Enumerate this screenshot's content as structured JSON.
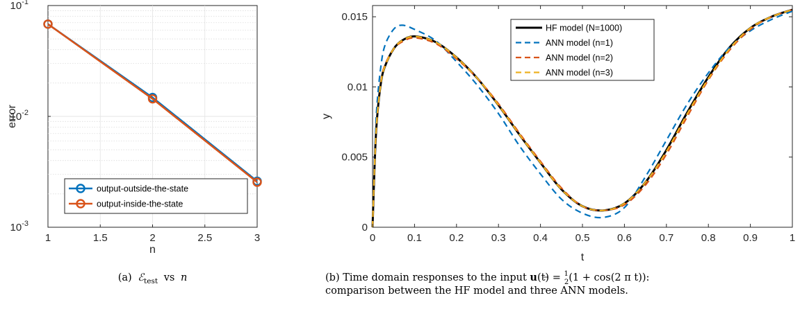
{
  "chart_data": [
    {
      "type": "line",
      "yscale": "log",
      "xlabel": "n",
      "ylabel": "error",
      "xlim": [
        1,
        3
      ],
      "ylim": [
        0.001,
        0.1
      ],
      "xticks": [
        1,
        1.5,
        2,
        2.5,
        3
      ],
      "xtick_labels": [
        "1",
        "1.5",
        "2",
        "2.5",
        "3"
      ],
      "ytick_labels": [
        {
          "base": "10",
          "exp": "-1"
        },
        {
          "base": "10",
          "exp": "-2"
        },
        {
          "base": "10",
          "exp": "-3"
        }
      ],
      "grid": true,
      "legend_position": "bottom-right",
      "x": [
        1,
        2,
        3
      ],
      "series": [
        {
          "name": "output-outside-the-state",
          "color": "#0072BD",
          "marker": "circle",
          "values": [
            0.068,
            0.0148,
            0.0026
          ]
        },
        {
          "name": "output-inside-the-state",
          "color": "#D95319",
          "marker": "circle",
          "values": [
            0.068,
            0.0144,
            0.00255
          ]
        }
      ],
      "caption": {
        "prefix": "(a)",
        "math": "ℰ",
        "sub": "test",
        "mid": "vs",
        "var": "n"
      }
    },
    {
      "type": "line",
      "xlabel": "t",
      "ylabel": "y",
      "xlim": [
        0,
        1
      ],
      "ylim": [
        0,
        0.0158
      ],
      "xticks": [
        0,
        0.1,
        0.2,
        0.3,
        0.4,
        0.5,
        0.6,
        0.7,
        0.8,
        0.9,
        1
      ],
      "xtick_labels": [
        "0",
        "0.1",
        "0.2",
        "0.3",
        "0.4",
        "0.5",
        "0.6",
        "0.7",
        "0.8",
        "0.9",
        "1"
      ],
      "yticks": [
        0,
        0.005,
        0.01,
        0.015
      ],
      "ytick_labels": [
        "0",
        "0.005",
        "0.01",
        "0.015"
      ],
      "grid": false,
      "legend_position": "top",
      "x": [
        0,
        0.005,
        0.01,
        0.02,
        0.03,
        0.05,
        0.07,
        0.1,
        0.15,
        0.2,
        0.25,
        0.3,
        0.35,
        0.4,
        0.45,
        0.5,
        0.55,
        0.6,
        0.65,
        0.7,
        0.75,
        0.8,
        0.85,
        0.9,
        0.95,
        1
      ],
      "series": [
        {
          "name": "HF model (N=1000)",
          "color": "#000000",
          "dash": "",
          "width": 3,
          "values": [
            0,
            0.0045,
            0.0075,
            0.0103,
            0.0115,
            0.0127,
            0.0133,
            0.0136,
            0.0132,
            0.0121,
            0.0106,
            0.0087,
            0.0066,
            0.0046,
            0.0027,
            0.0015,
            0.0012,
            0.0017,
            0.0032,
            0.0055,
            0.0082,
            0.0107,
            0.0128,
            0.0142,
            0.015,
            0.0155
          ]
        },
        {
          "name": "ANN model (n=1)",
          "color": "#0072BD",
          "dash": "9,6",
          "width": 2.2,
          "values": [
            0,
            0.005,
            0.0085,
            0.0115,
            0.013,
            0.0141,
            0.0144,
            0.0141,
            0.0133,
            0.0118,
            0.0101,
            0.0081,
            0.0058,
            0.0038,
            0.002,
            0.001,
            0.0007,
            0.0014,
            0.0036,
            0.0062,
            0.0088,
            0.011,
            0.0128,
            0.014,
            0.0148,
            0.0154
          ]
        },
        {
          "name": "ANN model (n=2)",
          "color": "#D95319",
          "dash": "9,6",
          "width": 2.2,
          "values": [
            0,
            0.0046,
            0.0076,
            0.0104,
            0.0116,
            0.0127,
            0.0132,
            0.0135,
            0.0131,
            0.012,
            0.0106,
            0.0088,
            0.0067,
            0.0047,
            0.0028,
            0.0015,
            0.0012,
            0.0016,
            0.003,
            0.0052,
            0.0079,
            0.0105,
            0.0126,
            0.0141,
            0.015,
            0.0155
          ]
        },
        {
          "name": "ANN model (n=3)",
          "color": "#EDB120",
          "dash": "9,6",
          "width": 2.2,
          "values": [
            0,
            0.0045,
            0.0075,
            0.0103,
            0.0115,
            0.0127,
            0.0133,
            0.0136,
            0.0132,
            0.0121,
            0.0106,
            0.0087,
            0.0066,
            0.0046,
            0.0027,
            0.0015,
            0.0012,
            0.0017,
            0.0032,
            0.0054,
            0.0081,
            0.0106,
            0.0127,
            0.0142,
            0.015,
            0.0155
          ]
        }
      ],
      "caption": {
        "line1_prefix": "(b) Time domain responses to the input ",
        "bold": "u",
        "line1_mid": "(t) = ",
        "frac_num": "1",
        "frac_den": "2",
        "line1_suffix": "(1 + cos(2 π t)):",
        "line2": "comparison between the HF model and three ANN models."
      }
    }
  ]
}
